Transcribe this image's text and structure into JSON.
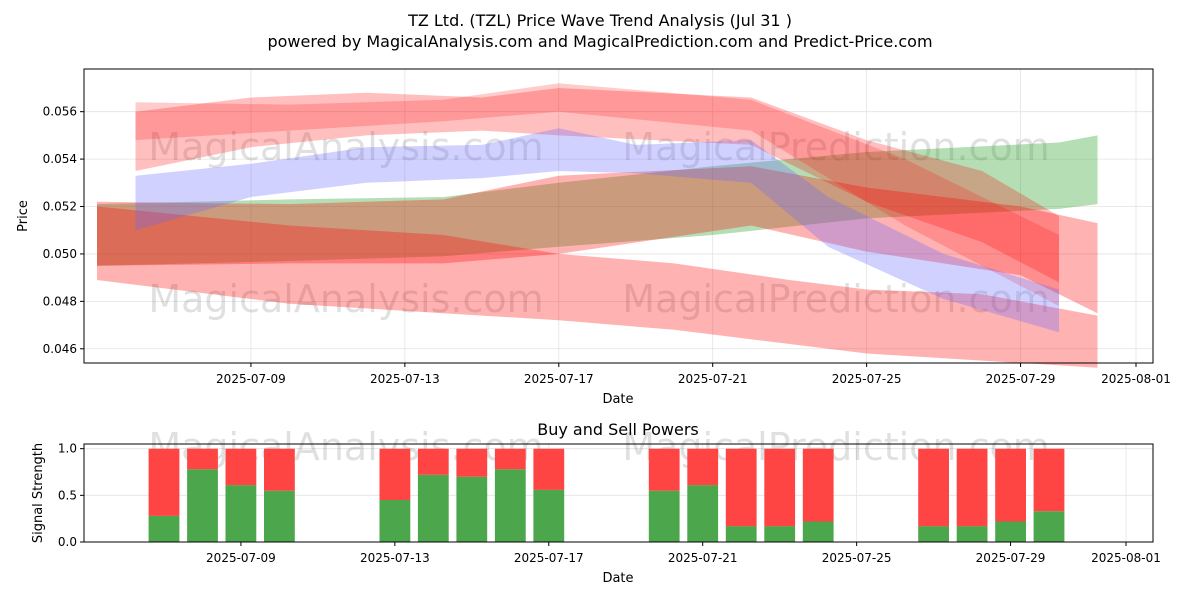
{
  "title_line1": "TZ Ltd. (TZL) Price Wave Trend Analysis (Jul 31 )",
  "title_line2": "powered by MagicalAnalysis.com and MagicalPrediction.com and Predict-Price.com",
  "watermarks": [
    "MagicalAnalysis.com",
    "MagicalPrediction.com"
  ],
  "colors": {
    "green": "#2ca02c",
    "red": "#ff0000",
    "blue": "#6666ff",
    "olive": "#8b7d3a",
    "sell": "#ff4444",
    "buy": "#4ca64c"
  },
  "chart_data": [
    {
      "type": "area",
      "xlabel": "Date",
      "ylabel": "Price",
      "ylim": [
        0.0454,
        0.0578
      ],
      "xlim": [
        "2025-07-05",
        "2025-08-01"
      ],
      "yticks": [
        "0.046",
        "0.048",
        "0.050",
        "0.052",
        "0.054",
        "0.056"
      ],
      "xticks": [
        "2025-07-09",
        "2025-07-13",
        "2025-07-17",
        "2025-07-21",
        "2025-07-25",
        "2025-07-29",
        "2025-08-01"
      ],
      "grid": true,
      "bands": [
        {
          "color": "green",
          "opacity": 0.35,
          "x": [
            "2025-07-05",
            "2025-07-10",
            "2025-07-14",
            "2025-07-17",
            "2025-07-21",
            "2025-07-25",
            "2025-07-30",
            "2025-07-31"
          ],
          "upper": [
            0.0521,
            0.0523,
            0.0524,
            0.053,
            0.0537,
            0.0543,
            0.0547,
            0.055
          ],
          "lower": [
            0.0495,
            0.0497,
            0.0499,
            0.0503,
            0.0508,
            0.0515,
            0.0519,
            0.0521
          ]
        },
        {
          "color": "red",
          "opacity": 0.3,
          "x": [
            "2025-07-05",
            "2025-07-10",
            "2025-07-14",
            "2025-07-17",
            "2025-07-20",
            "2025-07-23",
            "2025-07-25",
            "2025-07-28",
            "2025-07-31"
          ],
          "upper": [
            0.052,
            0.0512,
            0.0508,
            0.05,
            0.0496,
            0.0489,
            0.0485,
            0.0483,
            0.0474
          ],
          "lower": [
            0.0489,
            0.0479,
            0.0475,
            0.0472,
            0.0468,
            0.0462,
            0.0458,
            0.0455,
            0.0452
          ]
        },
        {
          "color": "red",
          "opacity": 0.3,
          "x": [
            "2025-07-05",
            "2025-07-10",
            "2025-07-14",
            "2025-07-17",
            "2025-07-22",
            "2025-07-25",
            "2025-07-29",
            "2025-07-31"
          ],
          "upper": [
            0.0522,
            0.0521,
            0.0523,
            0.0533,
            0.0537,
            0.0528,
            0.052,
            0.0513
          ],
          "lower": [
            0.0495,
            0.0496,
            0.0496,
            0.05,
            0.0512,
            0.0501,
            0.0491,
            0.0475
          ]
        },
        {
          "color": "red",
          "opacity": 0.25,
          "x": [
            "2025-07-06",
            "2025-07-09",
            "2025-07-12",
            "2025-07-15",
            "2025-07-17",
            "2025-07-22",
            "2025-07-25",
            "2025-07-28",
            "2025-07-30"
          ],
          "upper": [
            0.056,
            0.0566,
            0.0568,
            0.0566,
            0.057,
            0.0566,
            0.0548,
            0.0535,
            0.0516
          ],
          "lower": [
            0.0535,
            0.0545,
            0.055,
            0.0552,
            0.055,
            0.0546,
            0.0522,
            0.0505,
            0.0488
          ]
        },
        {
          "color": "red",
          "opacity": 0.2,
          "x": [
            "2025-07-06",
            "2025-07-10",
            "2025-07-14",
            "2025-07-17",
            "2025-07-22",
            "2025-07-26",
            "2025-07-30"
          ],
          "upper": [
            0.0564,
            0.0563,
            0.0565,
            0.0572,
            0.0565,
            0.054,
            0.0508
          ],
          "lower": [
            0.0548,
            0.0552,
            0.0556,
            0.056,
            0.0552,
            0.0512,
            0.0478
          ]
        },
        {
          "color": "blue",
          "opacity": 0.3,
          "x": [
            "2025-07-06",
            "2025-07-09",
            "2025-07-12",
            "2025-07-15",
            "2025-07-17",
            "2025-07-19",
            "2025-07-22",
            "2025-07-24",
            "2025-07-27",
            "2025-07-30"
          ],
          "upper": [
            0.0533,
            0.0538,
            0.0545,
            0.0546,
            0.0553,
            0.0546,
            0.0548,
            0.0524,
            0.05,
            0.0485
          ],
          "lower": [
            0.051,
            0.0524,
            0.053,
            0.0532,
            0.0535,
            0.0534,
            0.053,
            0.0503,
            0.0481,
            0.0467
          ]
        }
      ]
    },
    {
      "type": "bar",
      "title": "Buy and Sell Powers",
      "xlabel": "Date",
      "ylabel": "Signal Strength",
      "ylim": [
        0,
        1.05
      ],
      "yticks": [
        "0.0",
        "0.5",
        "1.0"
      ],
      "xticks": [
        "2025-07-09",
        "2025-07-13",
        "2025-07-17",
        "2025-07-21",
        "2025-07-25",
        "2025-07-29",
        "2025-08-01"
      ],
      "grid": true,
      "categories": [
        "2025-07-07",
        "2025-07-08",
        "2025-07-09",
        "2025-07-10",
        "2025-07-13",
        "2025-07-14",
        "2025-07-15",
        "2025-07-16",
        "2025-07-17",
        "2025-07-20",
        "2025-07-21",
        "2025-07-22",
        "2025-07-23",
        "2025-07-24",
        "2025-07-27",
        "2025-07-28",
        "2025-07-29",
        "2025-07-30"
      ],
      "series": [
        {
          "values": [
            0.28,
            0.78,
            0.61,
            0.55,
            0.45,
            0.72,
            0.7,
            0.78,
            0.56,
            0.55,
            0.61,
            0.17,
            0.17,
            0.22,
            0.17,
            0.17,
            0.22,
            0.33
          ]
        },
        {
          "values": [
            0.72,
            0.22,
            0.39,
            0.45,
            0.55,
            0.28,
            0.3,
            0.22,
            0.44,
            0.45,
            0.39,
            0.83,
            0.83,
            0.78,
            0.83,
            0.83,
            0.78,
            0.67
          ]
        }
      ]
    }
  ]
}
